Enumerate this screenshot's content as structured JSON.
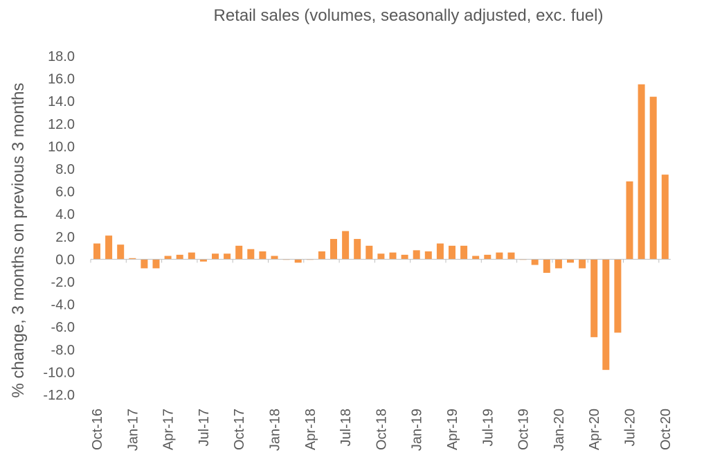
{
  "chart_data": {
    "type": "bar",
    "title": "Retail sales (volumes, seasonally adjusted, exc. fuel)",
    "xlabel": "",
    "ylabel": "% change, 3 months on previous 3 months",
    "ylim": [
      -12,
      18
    ],
    "yticks": [
      "18.0",
      "16.0",
      "14.0",
      "12.0",
      "10.0",
      "8.0",
      "6.0",
      "4.0",
      "2.0",
      "0.0",
      "-2.0",
      "-4.0",
      "-6.0",
      "-8.0",
      "-10.0",
      "-12.0"
    ],
    "xtick_labels": [
      "Oct-16",
      "Jan-17",
      "Apr-17",
      "Jul-17",
      "Oct-17",
      "Jan-18",
      "Apr-18",
      "Jul-18",
      "Oct-18",
      "Jan-19",
      "Apr-19",
      "Jul-19",
      "Oct-19",
      "Jan-20",
      "Apr-20",
      "Jul-20",
      "Oct-20"
    ],
    "categories": [
      "Oct-16",
      "Nov-16",
      "Dec-16",
      "Jan-17",
      "Feb-17",
      "Mar-17",
      "Apr-17",
      "May-17",
      "Jun-17",
      "Jul-17",
      "Aug-17",
      "Sep-17",
      "Oct-17",
      "Nov-17",
      "Dec-17",
      "Jan-18",
      "Feb-18",
      "Mar-18",
      "Apr-18",
      "May-18",
      "Jun-18",
      "Jul-18",
      "Aug-18",
      "Sep-18",
      "Oct-18",
      "Nov-18",
      "Dec-18",
      "Jan-19",
      "Feb-19",
      "Mar-19",
      "Apr-19",
      "May-19",
      "Jun-19",
      "Jul-19",
      "Aug-19",
      "Sep-19",
      "Oct-19",
      "Nov-19",
      "Dec-19",
      "Jan-20",
      "Feb-20",
      "Mar-20",
      "Apr-20",
      "May-20",
      "Jun-20",
      "Jul-20",
      "Aug-20",
      "Sep-20",
      "Oct-20"
    ],
    "values": [
      1.4,
      2.1,
      1.3,
      0.1,
      -0.8,
      -0.8,
      0.3,
      0.4,
      0.6,
      -0.2,
      0.5,
      0.5,
      1.2,
      0.9,
      0.7,
      0.3,
      0.0,
      -0.3,
      0.0,
      0.7,
      1.8,
      2.5,
      1.8,
      1.2,
      0.5,
      0.6,
      0.4,
      0.8,
      0.7,
      1.4,
      1.2,
      1.2,
      0.3,
      0.4,
      0.6,
      0.6,
      0.0,
      -0.5,
      -1.2,
      -0.8,
      -0.3,
      -0.8,
      -6.9,
      -9.8,
      -6.5,
      6.9,
      15.5,
      14.4,
      7.5
    ],
    "grid": false,
    "colors": {
      "bar": "#F79646",
      "axis": "#BFBFBF",
      "text": "#595959"
    }
  }
}
